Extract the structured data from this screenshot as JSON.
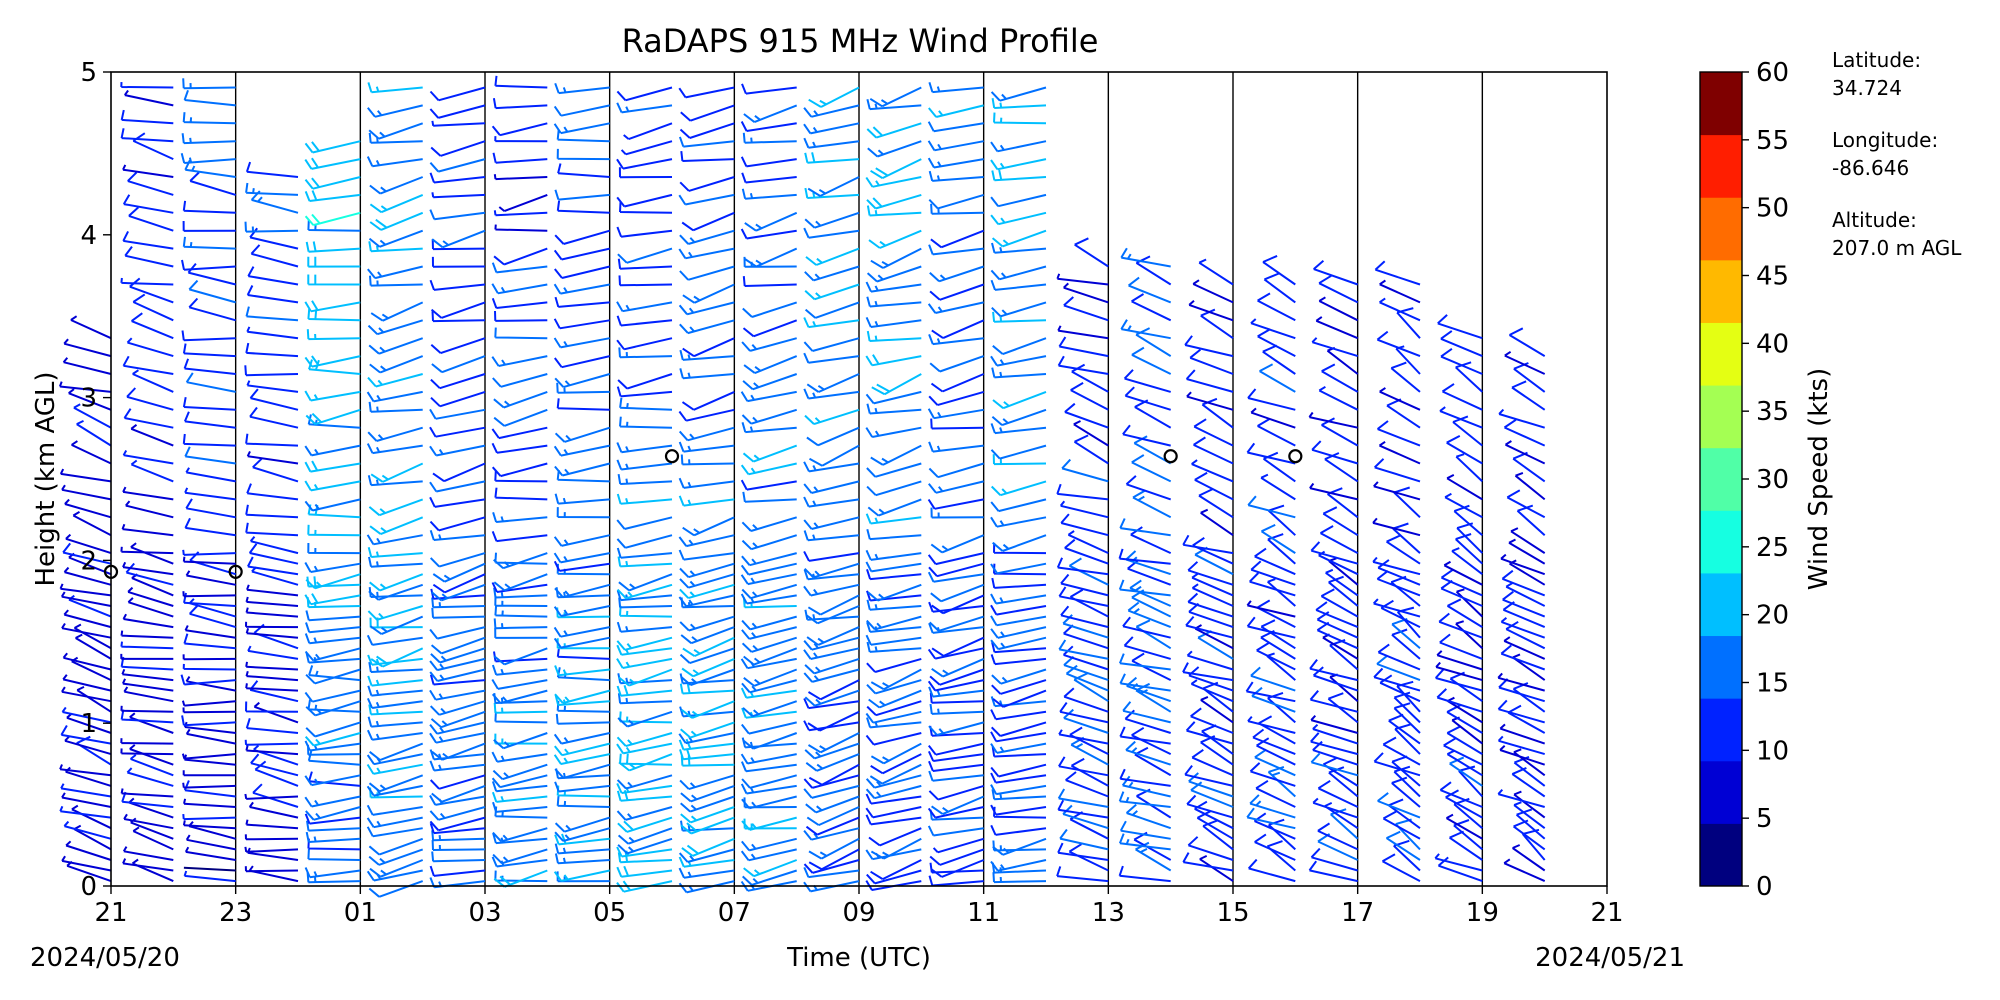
{
  "chart_data": {
    "type": "wind-barb-profile",
    "title": "RaDAPS 915 MHz Wind Profile",
    "xlabel": "Time (UTC)",
    "ylabel": "Height (km AGL)",
    "x_start_date": "2024/05/20",
    "x_end_date": "2024/05/21",
    "xticks": [
      "21",
      "23",
      "01",
      "03",
      "05",
      "07",
      "09",
      "11",
      "13",
      "15",
      "17",
      "19",
      "21"
    ],
    "yticks": [
      "0",
      "1",
      "2",
      "3",
      "4",
      "5"
    ],
    "ylim": [
      0,
      5
    ],
    "x_range_hours": [
      21,
      45
    ],
    "vertical_gridlines": true,
    "colorbar": {
      "label": "Wind Speed (kts)",
      "ticks": [
        "0",
        "5",
        "10",
        "15",
        "20",
        "25",
        "30",
        "35",
        "40",
        "45",
        "50",
        "55",
        "60"
      ],
      "colors": [
        "#00007f",
        "#0000d4",
        "#0022ff",
        "#0070ff",
        "#00bfff",
        "#16ffe1",
        "#50ffa7",
        "#a4ff53",
        "#e4ff13",
        "#ffb900",
        "#ff6c00",
        "#ff1e00",
        "#7f0000"
      ]
    },
    "station": {
      "latitude_label": "Latitude:",
      "latitude": "34.724",
      "longitude_label": "Longitude:",
      "longitude": "-86.646",
      "altitude_label": "Altitude:",
      "altitude": "207.0 m AGL"
    },
    "calm_markers": [
      {
        "hour": 21.0,
        "height_km": 1.93
      },
      {
        "hour": 23.0,
        "height_km": 1.93
      },
      {
        "hour": 30.0,
        "height_km": 2.64
      },
      {
        "hour": 38.0,
        "height_km": 2.64
      },
      {
        "hour": 40.0,
        "height_km": 2.64
      }
    ],
    "profiles": [
      {
        "hour": 21.0,
        "top_km": 3.4,
        "low_speed_kts": 9,
        "high_speed_kts": 7,
        "direction_deg": 300
      },
      {
        "hour": 22.0,
        "top_km": 5.0,
        "low_speed_kts": 8,
        "high_speed_kts": 11,
        "direction_deg": 290
      },
      {
        "hour": 23.0,
        "top_km": 5.0,
        "low_speed_kts": 7,
        "high_speed_kts": 16,
        "direction_deg": 280
      },
      {
        "hour": 24.0,
        "top_km": 4.4,
        "low_speed_kts": 8,
        "high_speed_kts": 14,
        "direction_deg": 285
      },
      {
        "hour": 25.0,
        "top_km": 4.6,
        "low_speed_kts": 15,
        "high_speed_kts": 22,
        "direction_deg": 260
      },
      {
        "hour": 26.0,
        "top_km": 5.0,
        "low_speed_kts": 17,
        "high_speed_kts": 18,
        "direction_deg": 250
      },
      {
        "hour": 27.0,
        "top_km": 5.0,
        "low_speed_kts": 16,
        "high_speed_kts": 12,
        "direction_deg": 250
      },
      {
        "hour": 28.0,
        "top_km": 5.0,
        "low_speed_kts": 18,
        "high_speed_kts": 10,
        "direction_deg": 255
      },
      {
        "hour": 29.0,
        "top_km": 5.0,
        "low_speed_kts": 18,
        "high_speed_kts": 13,
        "direction_deg": 260
      },
      {
        "hour": 30.0,
        "top_km": 5.0,
        "low_speed_kts": 20,
        "high_speed_kts": 12,
        "direction_deg": 255
      },
      {
        "hour": 31.0,
        "top_km": 5.0,
        "low_speed_kts": 19,
        "high_speed_kts": 14,
        "direction_deg": 250
      },
      {
        "hour": 32.0,
        "top_km": 5.0,
        "low_speed_kts": 17,
        "high_speed_kts": 15,
        "direction_deg": 250
      },
      {
        "hour": 33.0,
        "top_km": 5.0,
        "low_speed_kts": 14,
        "high_speed_kts": 18,
        "direction_deg": 245
      },
      {
        "hour": 34.0,
        "top_km": 5.0,
        "low_speed_kts": 13,
        "high_speed_kts": 20,
        "direction_deg": 245
      },
      {
        "hour": 35.0,
        "top_km": 5.0,
        "low_speed_kts": 12,
        "high_speed_kts": 17,
        "direction_deg": 250
      },
      {
        "hour": 36.0,
        "top_km": 5.0,
        "low_speed_kts": 14,
        "high_speed_kts": 18,
        "direction_deg": 255
      },
      {
        "hour": 37.0,
        "top_km": 3.9,
        "low_speed_kts": 13,
        "high_speed_kts": 11,
        "direction_deg": 300
      },
      {
        "hour": 38.0,
        "top_km": 3.9,
        "low_speed_kts": 14,
        "high_speed_kts": 14,
        "direction_deg": 300
      },
      {
        "hour": 39.0,
        "top_km": 3.8,
        "low_speed_kts": 12,
        "high_speed_kts": 11,
        "direction_deg": 305
      },
      {
        "hour": 40.0,
        "top_km": 3.7,
        "low_speed_kts": 13,
        "high_speed_kts": 11,
        "direction_deg": 310
      },
      {
        "hour": 41.0,
        "top_km": 3.7,
        "low_speed_kts": 12,
        "high_speed_kts": 9,
        "direction_deg": 310
      },
      {
        "hour": 42.0,
        "top_km": 3.7,
        "low_speed_kts": 13,
        "high_speed_kts": 10,
        "direction_deg": 315
      },
      {
        "hour": 43.0,
        "top_km": 3.4,
        "low_speed_kts": 12,
        "high_speed_kts": 10,
        "direction_deg": 315
      },
      {
        "hour": 44.0,
        "top_km": 3.3,
        "low_speed_kts": 11,
        "high_speed_kts": 9,
        "direction_deg": 315
      }
    ]
  }
}
